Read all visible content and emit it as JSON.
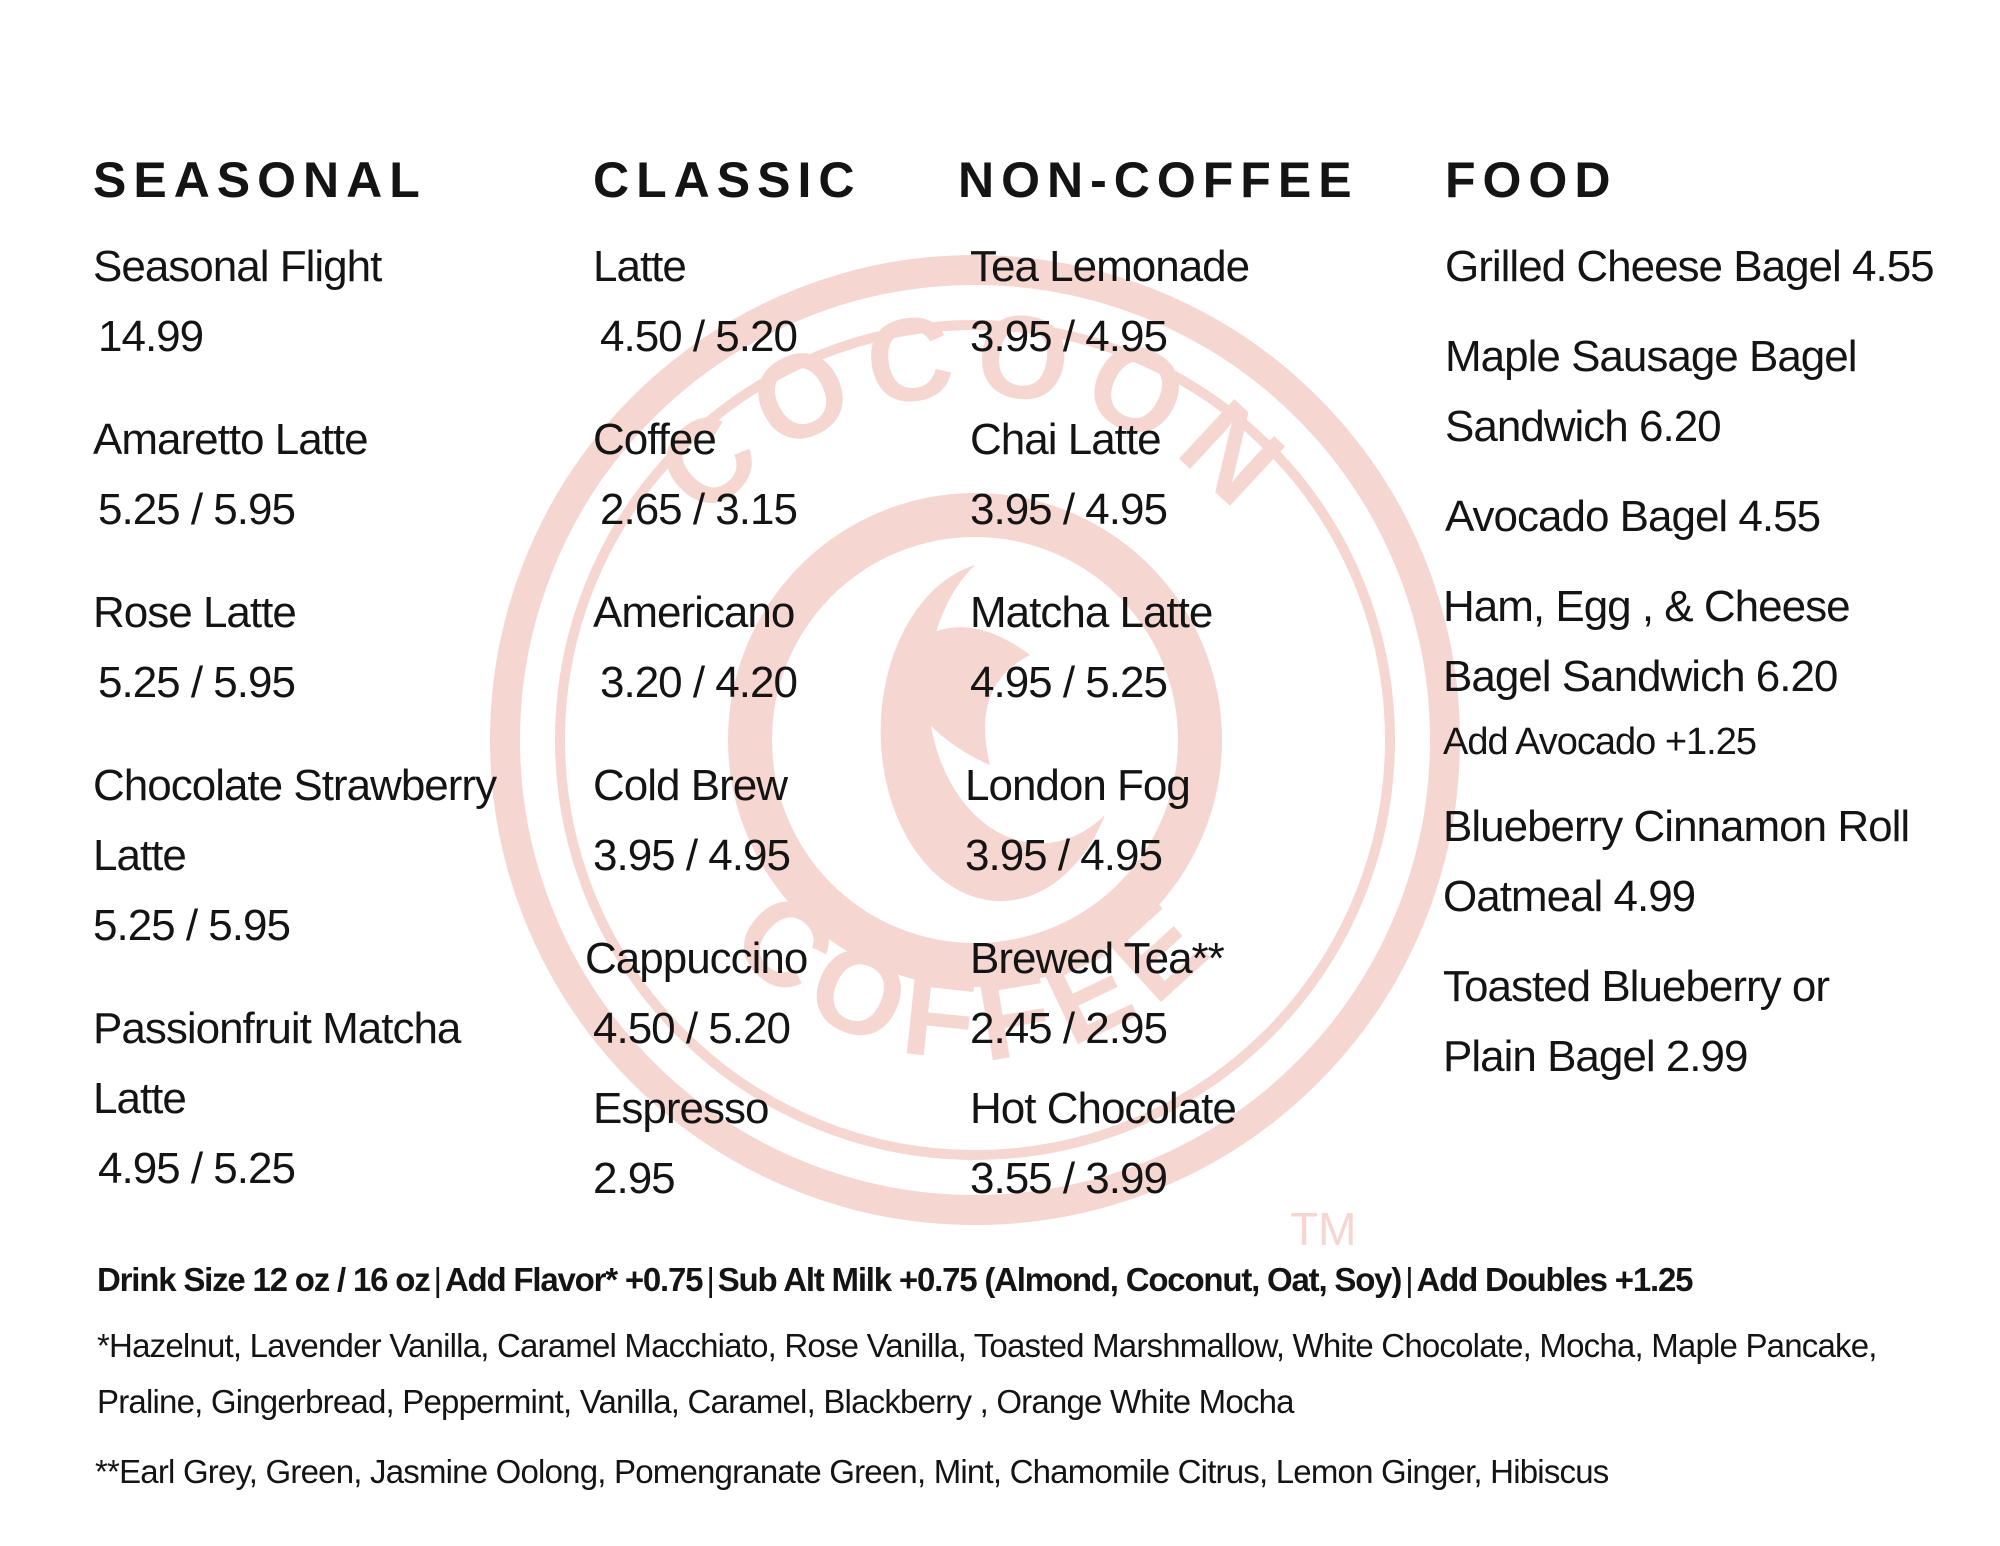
{
  "logo": {
    "top_text": "COCOON",
    "bottom_text": "COFFEE",
    "mark": "TM",
    "color": "#f6d6d0"
  },
  "columns": {
    "seasonal": {
      "title": "SEASONAL",
      "items": [
        {
          "name": "Seasonal Flight",
          "price": "14.99"
        },
        {
          "name": "Amaretto Latte",
          "price": "5.25 / 5.95"
        },
        {
          "name": "Rose Latte",
          "price": "5.25 / 5.95"
        },
        {
          "name": "Chocolate Strawberry Latte",
          "price": "5.25 / 5.95"
        },
        {
          "name": "Passionfruit Matcha Latte",
          "price": "4.95 / 5.25"
        }
      ]
    },
    "classic": {
      "title": "CLASSIC",
      "items": [
        {
          "name": "Latte",
          "price": "4.50 / 5.20"
        },
        {
          "name": "Coffee",
          "price": "2.65 / 3.15"
        },
        {
          "name": "Americano",
          "price": "3.20 / 4.20"
        },
        {
          "name": "Cold Brew",
          "price": "3.95 / 4.95"
        },
        {
          "name": "Cappuccino",
          "price": "4.50 / 5.20"
        },
        {
          "name": "Espresso",
          "price": "2.95"
        }
      ]
    },
    "noncoffee": {
      "title": "NON-COFFEE",
      "items": [
        {
          "name": "Tea Lemonade",
          "price": "3.95 / 4.95"
        },
        {
          "name": "Chai Latte",
          "price": "3.95 / 4.95"
        },
        {
          "name": "Matcha Latte",
          "price": "4.95 / 5.25"
        },
        {
          "name": "London Fog",
          "price": "3.95 / 4.95"
        },
        {
          "name": "Brewed Tea**",
          "price": "2.45 / 2.95"
        },
        {
          "name": "Hot Chocolate",
          "price": "3.55 / 3.99"
        }
      ]
    },
    "food": {
      "title": "FOOD",
      "items": [
        {
          "text": "Grilled Cheese Bagel 4.55"
        },
        {
          "text": "Maple Sausage Bagel Sandwich 6.20"
        },
        {
          "text": "Avocado Bagel 4.55"
        },
        {
          "text": "Ham, Egg , & Cheese Bagel Sandwich 6.20"
        },
        {
          "text": "Add Avocado +1.25"
        },
        {
          "text": "Blueberry Cinnamon Roll Oatmeal 4.99"
        },
        {
          "text": "Toasted Blueberry or Plain Bagel 2.99"
        }
      ]
    }
  },
  "footer": {
    "sizes": "Drink Size 12 oz / 16 oz",
    "flavor": "Add Flavor* +0.75",
    "milk": "Sub Alt Milk +0.75 (Almond, Coconut,  Oat, Soy)",
    "doubles": "Add Doubles +1.25",
    "flavor_note": "*Hazelnut, Lavender Vanilla, Caramel Macchiato, Rose Vanilla, Toasted Marshmallow, White Chocolate, Mocha, Maple Pancake, Praline, Gingerbread, Peppermint, Vanilla, Caramel, Blackberry , Orange White Mocha",
    "tea_note": "**Earl Grey, Green, Jasmine Oolong, Pomengranate Green, Mint, Chamomile Citrus, Lemon Ginger, Hibiscus"
  }
}
